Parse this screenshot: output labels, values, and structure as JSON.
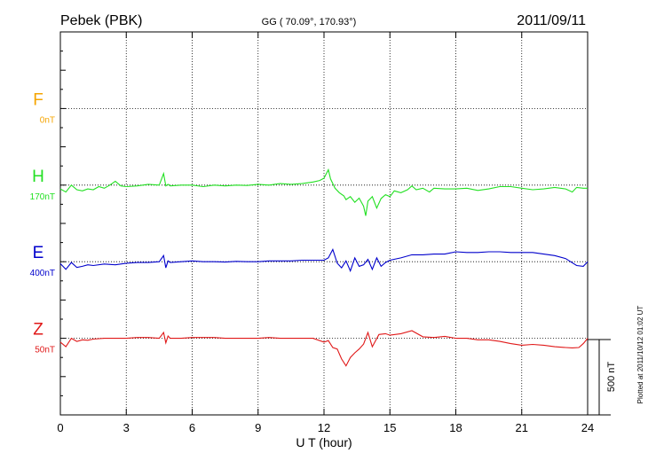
{
  "chart_data": {
    "type": "line",
    "station": "Pebek (PBK)",
    "coords": "GG ( 70.09°, 170.93°)",
    "date": "2011/09/11",
    "plotted_note": "Plotted at 2011/10/12 01:02 UT",
    "scale_label": "500 nT",
    "xlabel": "U T (hour)",
    "xlim": [
      0,
      24
    ],
    "x_ticks": [
      {
        "value": 0,
        "label": "0"
      },
      {
        "value": 3,
        "label": "3"
      },
      {
        "value": 6,
        "label": "6"
      },
      {
        "value": 9,
        "label": "9"
      },
      {
        "value": 12,
        "label": "12"
      },
      {
        "value": 15,
        "label": "15"
      },
      {
        "value": 18,
        "label": "18"
      },
      {
        "value": 21,
        "label": "21"
      },
      {
        "value": 24,
        "label": "24"
      }
    ],
    "grid": true,
    "ylim": [
      0,
      1000
    ],
    "series": [
      {
        "name": "F",
        "baseline_label": "0nT",
        "color": "#f5a400",
        "baseline": 800,
        "x": [],
        "y": []
      },
      {
        "name": "H",
        "baseline_label": "170nT",
        "color": "#22e022",
        "baseline": 600,
        "x": [
          0,
          0.25,
          0.5,
          0.75,
          1.0,
          1.25,
          1.5,
          1.75,
          2.0,
          2.25,
          2.5,
          2.75,
          3.0,
          3.5,
          4.0,
          4.5,
          4.7,
          4.8,
          4.9,
          5.0,
          5.5,
          6.0,
          6.5,
          7.0,
          7.5,
          8.0,
          8.5,
          9.0,
          9.5,
          10.0,
          10.5,
          11.0,
          11.5,
          11.8,
          12.0,
          12.2,
          12.3,
          12.5,
          12.7,
          12.9,
          13.0,
          13.2,
          13.4,
          13.6,
          13.8,
          13.9,
          14.0,
          14.2,
          14.4,
          14.6,
          14.8,
          15.0,
          15.2,
          15.5,
          15.8,
          16.0,
          16.2,
          16.5,
          16.8,
          17.0,
          17.5,
          18.0,
          18.5,
          19.0,
          19.5,
          20.0,
          20.5,
          21.0,
          21.5,
          22.0,
          22.5,
          23.0,
          23.3,
          23.5,
          23.8,
          24.0
        ],
        "y": [
          590,
          582,
          600,
          588,
          585,
          590,
          588,
          596,
          592,
          600,
          610,
          598,
          596,
          598,
          602,
          600,
          630,
          598,
          602,
          598,
          600,
          600,
          596,
          600,
          598,
          600,
          599,
          602,
          600,
          604,
          602,
          604,
          608,
          612,
          618,
          640,
          616,
          592,
          580,
          572,
          562,
          570,
          555,
          566,
          545,
          520,
          558,
          570,
          540,
          565,
          575,
          570,
          585,
          580,
          588,
          598,
          588,
          592,
          582,
          592,
          590,
          590,
          592,
          586,
          590,
          596,
          596,
          592,
          588,
          590,
          594,
          590,
          582,
          594,
          592,
          592
        ]
      },
      {
        "name": "E",
        "baseline_label": "400nT",
        "color": "#0000cc",
        "baseline": 400,
        "x": [
          0,
          0.25,
          0.5,
          0.75,
          1.0,
          1.25,
          1.5,
          2.0,
          2.5,
          3.0,
          3.5,
          4.0,
          4.5,
          4.7,
          4.8,
          4.9,
          5.0,
          5.5,
          6.0,
          6.5,
          7.0,
          7.5,
          8.0,
          8.5,
          9.0,
          9.5,
          10.0,
          10.5,
          11.0,
          11.5,
          12.0,
          12.2,
          12.4,
          12.6,
          12.8,
          13.0,
          13.2,
          13.4,
          13.6,
          13.8,
          14.0,
          14.2,
          14.4,
          14.6,
          14.8,
          15.0,
          15.5,
          16.0,
          16.5,
          17.0,
          17.5,
          18.0,
          18.5,
          19.0,
          19.5,
          20.0,
          20.5,
          21.0,
          21.5,
          22.0,
          22.5,
          23.0,
          23.5,
          23.8,
          24.0
        ],
        "y": [
          395,
          380,
          398,
          385,
          388,
          392,
          390,
          394,
          392,
          396,
          398,
          398,
          400,
          416,
          384,
          402,
          398,
          400,
          402,
          400,
          400,
          399,
          401,
          400,
          400,
          402,
          402,
          402,
          404,
          404,
          404,
          410,
          432,
          396,
          384,
          402,
          376,
          410,
          388,
          392,
          406,
          380,
          410,
          388,
          398,
          404,
          410,
          418,
          418,
          420,
          420,
          426,
          424,
          424,
          426,
          426,
          424,
          424,
          424,
          420,
          416,
          408,
          390,
          388,
          400
        ]
      },
      {
        "name": "Z",
        "baseline_label": "50nT",
        "color": "#e01818",
        "baseline": 200,
        "x": [
          0,
          0.25,
          0.5,
          0.75,
          1.0,
          1.25,
          1.5,
          2.0,
          2.5,
          3.0,
          3.5,
          4.0,
          4.5,
          4.7,
          4.8,
          4.9,
          5.0,
          5.5,
          6.0,
          6.5,
          7.0,
          7.5,
          8.0,
          8.5,
          9.0,
          9.5,
          10.0,
          10.5,
          11.0,
          11.5,
          12.0,
          12.2,
          12.4,
          12.6,
          12.8,
          13.0,
          13.2,
          13.4,
          13.6,
          13.8,
          14.0,
          14.2,
          14.5,
          14.8,
          15.0,
          15.5,
          16.0,
          16.5,
          17.0,
          17.5,
          18.0,
          18.5,
          19.0,
          19.5,
          20.0,
          20.5,
          21.0,
          21.5,
          22.0,
          22.5,
          23.0,
          23.3,
          23.6,
          23.8,
          24.0
        ],
        "y": [
          190,
          178,
          200,
          192,
          196,
          195,
          198,
          200,
          200,
          200,
          202,
          202,
          200,
          215,
          188,
          206,
          200,
          200,
          202,
          202,
          202,
          200,
          200,
          200,
          200,
          202,
          200,
          200,
          200,
          200,
          190,
          194,
          176,
          172,
          146,
          128,
          150,
          162,
          172,
          185,
          215,
          178,
          210,
          212,
          208,
          212,
          220,
          204,
          202,
          205,
          200,
          200,
          196,
          196,
          192,
          186,
          182,
          184,
          182,
          178,
          176,
          175,
          176,
          186,
          200
        ]
      }
    ]
  }
}
